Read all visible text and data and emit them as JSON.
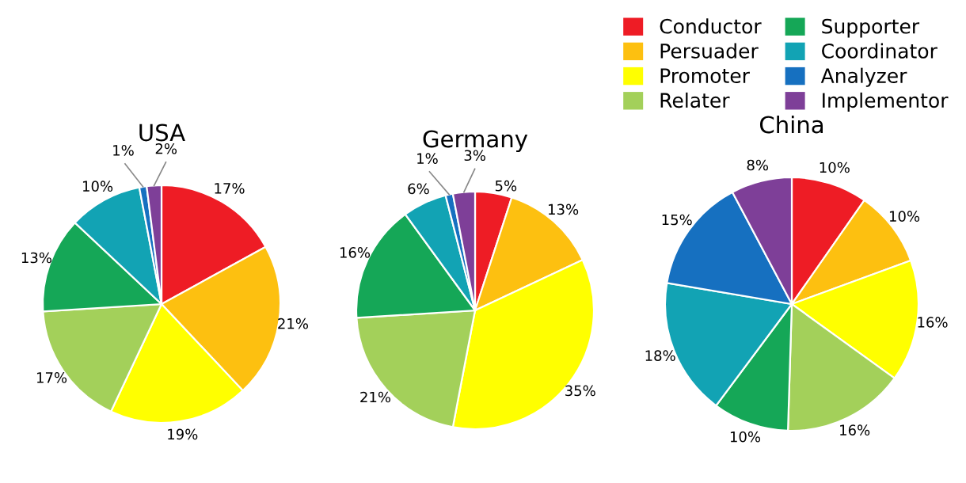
{
  "chart_data": [
    {
      "type": "pie",
      "title": "USA",
      "categories": [
        "Conductor",
        "Persuader",
        "Promoter",
        "Relater",
        "Supporter",
        "Coordinator",
        "Analyzer",
        "Implementor"
      ],
      "values": [
        17,
        21,
        19,
        17,
        13,
        10,
        1,
        2
      ],
      "colors": [
        "#ee1c25",
        "#fdc010",
        "#ffff00",
        "#a3d05a",
        "#15a757",
        "#12a3b4",
        "#1670c0",
        "#7e3f98"
      ],
      "value_labels": [
        "17%",
        "21%",
        "19%",
        "17%",
        "13%",
        "10%",
        "1%",
        "2%"
      ],
      "legend": "top right"
    },
    {
      "type": "pie",
      "title": "Germany",
      "categories": [
        null,
        null,
        null,
        null,
        null,
        null,
        null,
        null
      ],
      "values": [
        5,
        13,
        35,
        21,
        16,
        6,
        1,
        3
      ],
      "colors": [
        "#ee1c25",
        "#fdc010",
        "#ffff00",
        "#a3d05a",
        "#15a757",
        "#12a3b4",
        "#1670c0",
        "#7e3f98"
      ],
      "value_labels": [
        "5%",
        "13%",
        "35%",
        "21%",
        "16%",
        "6%",
        "1%",
        "3%"
      ]
    },
    {
      "type": "pie",
      "title": "China",
      "categories": [
        null,
        null,
        null,
        null,
        null,
        null,
        null,
        null
      ],
      "values": [
        10,
        10,
        16,
        16,
        10,
        18,
        15,
        8
      ],
      "colors": [
        "#ee1c25",
        "#fdc010",
        "#ffff00",
        "#a3d05a",
        "#15a757",
        "#12a3b4",
        "#1670c0",
        "#7e3f98"
      ],
      "value_labels": [
        "10%",
        "10%",
        "16%",
        "16%",
        "10%",
        "18%",
        "15%",
        "8%"
      ]
    }
  ]
}
